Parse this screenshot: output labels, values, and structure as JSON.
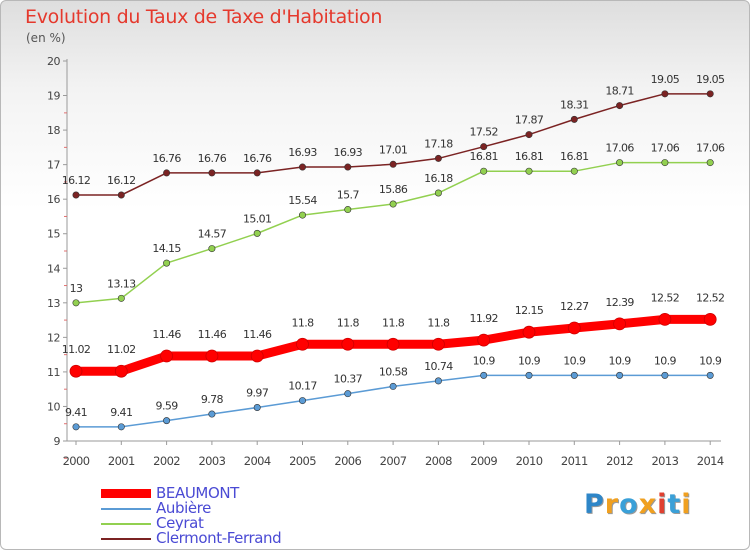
{
  "title": "Evolution du Taux de Taxe d'Habitation",
  "subtitle": "(en %)",
  "logo": {
    "text": "Proxiti",
    "colors": [
      "#2e86c8",
      "#f0a020",
      "#3aa0d8",
      "#f0a020",
      "#e04030",
      "#3aa0d8",
      "#f0a020"
    ]
  },
  "chart_data": {
    "type": "line",
    "x": [
      2000,
      2001,
      2002,
      2003,
      2004,
      2005,
      2006,
      2007,
      2008,
      2009,
      2010,
      2011,
      2012,
      2013,
      2014
    ],
    "ylim": [
      9,
      20
    ],
    "yticks": [
      9,
      10,
      11,
      12,
      13,
      14,
      15,
      16,
      17,
      18,
      19,
      20
    ],
    "grid": false,
    "legend_position": "bottom-left",
    "series": [
      {
        "name": "BEAUMONT",
        "color": "#ff0000",
        "values": [
          11.02,
          11.02,
          11.46,
          11.46,
          11.46,
          11.8,
          11.8,
          11.8,
          11.8,
          11.92,
          12.15,
          12.27,
          12.39,
          12.52,
          12.52
        ],
        "labels": [
          "11.02",
          "11.02",
          "11.46",
          "11.46",
          "11.46",
          "11.8",
          "11.8",
          "11.8",
          "11.8",
          "11.92",
          "12.15",
          "12.27",
          "12.39",
          "12.52",
          "12.52"
        ]
      },
      {
        "name": "Aubière",
        "color": "#5b9bd5",
        "values": [
          9.41,
          9.41,
          9.59,
          9.78,
          9.97,
          10.17,
          10.37,
          10.58,
          10.74,
          10.9,
          10.9,
          10.9,
          10.9,
          10.9,
          10.9
        ],
        "labels": [
          "9.41",
          "9.41",
          "9.59",
          "9.78",
          "9.97",
          "10.17",
          "10.37",
          "10.58",
          "10.74",
          "10.9",
          "10.9",
          "10.9",
          "10.9",
          "10.9",
          "10.9"
        ]
      },
      {
        "name": "Ceyrat",
        "color": "#92d050",
        "values": [
          13,
          13.13,
          14.15,
          14.57,
          15.01,
          15.54,
          15.7,
          15.86,
          16.18,
          16.81,
          16.81,
          16.81,
          17.06,
          17.06,
          17.06
        ],
        "labels": [
          "13",
          "13.13",
          "14.15",
          "14.57",
          "15.01",
          "15.54",
          "15.7",
          "15.86",
          "16.18",
          "16.81",
          "16.81",
          "16.81",
          "17.06",
          "17.06",
          "17.06"
        ]
      },
      {
        "name": "Clermont-Ferrand",
        "color": "#7b2323",
        "values": [
          16.12,
          16.12,
          16.76,
          16.76,
          16.76,
          16.93,
          16.93,
          17.01,
          17.18,
          17.52,
          17.87,
          18.31,
          18.71,
          19.05,
          19.05
        ],
        "labels": [
          "16.12",
          "16.12",
          "16.76",
          "16.76",
          "16.76",
          "16.93",
          "16.93",
          "17.01",
          "17.18",
          "17.52",
          "17.87",
          "18.31",
          "18.71",
          "19.05",
          "19.05"
        ]
      }
    ]
  }
}
